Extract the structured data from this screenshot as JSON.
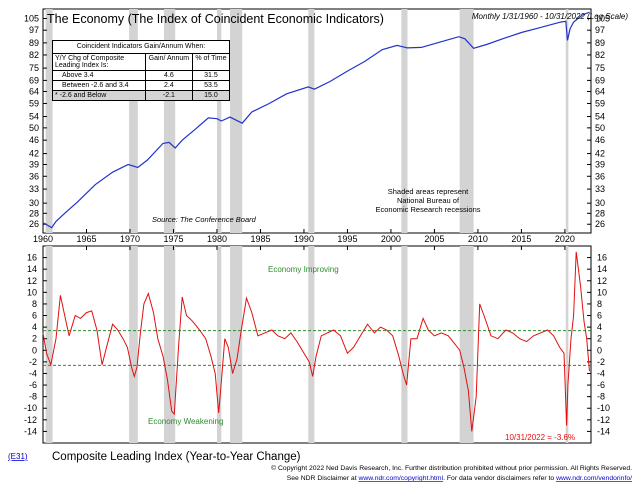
{
  "top_chart": {
    "title": "The Economy (The Index of Coincident Economic Indicators)",
    "subtitle": "Monthly 1/31/1960 - 10/31/2022 (Log Scale)",
    "source": "Source: The Conference Board",
    "shaded_note": [
      "Shaded areas represent",
      "National Bureau of",
      "Economic Research recessions"
    ],
    "y_ticks": [
      "105",
      "97",
      "89",
      "82",
      "75",
      "69",
      "64",
      "59",
      "54",
      "50",
      "46",
      "42",
      "39",
      "36",
      "33",
      "30",
      "28",
      "26"
    ]
  },
  "x_axis": {
    "ticks": [
      "1960",
      "1965",
      "1970",
      "1975",
      "1980",
      "1985",
      "1990",
      "1995",
      "2000",
      "2005",
      "2010",
      "2015",
      "2020"
    ]
  },
  "table": {
    "heading": "Coincident Indicators Gain/Annum When:",
    "col_headers": [
      "Y/Y Chg of Composite Leading Index Is:",
      "Gain/ Annum",
      "% of Time"
    ],
    "rows": [
      {
        "label": "Above 3.4",
        "gain": "4.6",
        "pct": "31.5"
      },
      {
        "label": "Between -2.6 and 3.4",
        "gain": "2.4",
        "pct": "53.5"
      },
      {
        "label": "* -2.6 and Below",
        "gain": "-2.1",
        "pct": "15.0"
      }
    ]
  },
  "bottom_chart": {
    "title": "Composite Leading Index (Year-to-Year Change)",
    "improving_label": "Economy Improving",
    "weakening_label": "Economy Weakening",
    "last_value_label": "10/31/2022 = -3.6%",
    "y_ticks": [
      "16",
      "14",
      "12",
      "10",
      "8",
      "6",
      "4",
      "2",
      "0",
      "-2",
      "-4",
      "-6",
      "-8",
      "-10",
      "-12",
      "-14"
    ]
  },
  "footer": {
    "code": "(E31)",
    "line1": "© Copyright 2022 Ned Davis Research, Inc.  Further distribution prohibited without prior permission.  All Rights Reserved.",
    "line2_a": "See NDR Disclaimer at",
    "link1": "www.ndr.com/copyright.html",
    "line2_b": ". For data vendor disclaimers refer to",
    "link2": "www.ndr.com/vendorinfo/"
  },
  "colors": {
    "line": "#e01010",
    "coincident": "#2233cc",
    "recession": "#d3d3d3",
    "threshold": "#2e8b2e"
  },
  "chart_data": [
    {
      "type": "line",
      "name": "Index of Coincident Economic Indicators",
      "scale": "log",
      "ylim": [
        24.5,
        112
      ],
      "xlim": [
        1960,
        2023
      ],
      "recessions": [
        [
          1960.3,
          1961.1
        ],
        [
          1969.9,
          1970.9
        ],
        [
          1973.9,
          1975.2
        ],
        [
          1980.0,
          1980.5
        ],
        [
          1981.5,
          1982.9
        ],
        [
          1990.5,
          1991.2
        ],
        [
          2001.2,
          2001.9
        ],
        [
          2007.9,
          2009.5
        ],
        [
          2020.1,
          2020.4
        ]
      ],
      "x": [
        1960.0,
        1961.0,
        1961.5,
        1962.5,
        1964.0,
        1966.0,
        1968.0,
        1969.8,
        1970.9,
        1972.0,
        1973.8,
        1974.5,
        1975.2,
        1976.0,
        1977.5,
        1979.0,
        1980.0,
        1980.5,
        1981.5,
        1982.9,
        1984.0,
        1986.0,
        1988.0,
        1990.5,
        1991.2,
        1993.0,
        1995.0,
        1997.0,
        1999.0,
        2000.7,
        2001.9,
        2003.5,
        2005.0,
        2007.8,
        2008.5,
        2009.5,
        2011.0,
        2013.0,
        2015.0,
        2017.0,
        2019.5,
        2020.1,
        2020.3,
        2020.6,
        2021.0,
        2022.0,
        2022.83
      ],
      "y": [
        26.3,
        25.4,
        26.5,
        28.0,
        30.3,
        34.0,
        37.0,
        39.0,
        38.2,
        40.2,
        45.0,
        45.3,
        43.6,
        46.0,
        49.5,
        53.5,
        53.2,
        52.4,
        53.8,
        51.6,
        55.7,
        59.0,
        63.0,
        66.0,
        65.0,
        68.5,
        73.5,
        78.5,
        85.0,
        87.5,
        86.0,
        86.3,
        88.5,
        92.8,
        91.5,
        85.8,
        88.0,
        91.8,
        95.5,
        98.5,
        102.5,
        103.0,
        90.5,
        98.0,
        102.5,
        107.5,
        109.6
      ]
    },
    {
      "type": "line",
      "name": "Composite Leading Index (Year-to-Year Change)",
      "unit": "%",
      "ylim": [
        -16,
        18
      ],
      "xlim": [
        1960,
        2023
      ],
      "thresholds": [
        3.4,
        -2.6
      ],
      "recessions": [
        [
          1960.3,
          1961.1
        ],
        [
          1969.9,
          1970.9
        ],
        [
          1973.9,
          1975.2
        ],
        [
          1980.0,
          1980.5
        ],
        [
          1981.5,
          1982.9
        ],
        [
          1990.5,
          1991.2
        ],
        [
          2001.2,
          2001.9
        ],
        [
          2007.9,
          2009.5
        ],
        [
          2020.1,
          2020.4
        ]
      ],
      "x": [
        1960.0,
        1960.4,
        1960.9,
        1961.5,
        1962.0,
        1962.5,
        1963.0,
        1963.7,
        1964.3,
        1965.0,
        1965.6,
        1966.2,
        1966.8,
        1967.3,
        1968.0,
        1968.6,
        1969.2,
        1969.7,
        1970.2,
        1970.5,
        1970.8,
        1971.2,
        1971.6,
        1972.1,
        1972.7,
        1973.2,
        1973.8,
        1974.3,
        1974.8,
        1975.1,
        1975.6,
        1976.0,
        1976.5,
        1977.2,
        1978.0,
        1978.7,
        1979.3,
        1979.8,
        1980.2,
        1980.5,
        1980.9,
        1981.3,
        1981.8,
        1982.3,
        1982.8,
        1983.4,
        1984.0,
        1984.7,
        1985.5,
        1986.3,
        1987.0,
        1987.8,
        1988.5,
        1989.2,
        1990.0,
        1990.6,
        1991.0,
        1991.4,
        1992.0,
        1992.7,
        1993.4,
        1994.2,
        1995.0,
        1995.7,
        1996.5,
        1997.3,
        1998.1,
        1998.8,
        1999.5,
        2000.2,
        2000.9,
        2001.4,
        2001.8,
        2002.3,
        2003.0,
        2003.7,
        2004.3,
        2005.0,
        2005.8,
        2006.6,
        2007.4,
        2007.9,
        2008.4,
        2008.9,
        2009.3,
        2009.8,
        2010.2,
        2010.7,
        2011.5,
        2012.3,
        2013.2,
        2014.0,
        2014.8,
        2015.6,
        2016.4,
        2017.2,
        2018.0,
        2018.7,
        2019.4,
        2019.9,
        2020.2,
        2020.35,
        2020.7,
        2021.0,
        2021.3,
        2021.8,
        2022.2,
        2022.5,
        2022.83
      ],
      "y": [
        3.0,
        -0.5,
        -2.5,
        2.0,
        9.5,
        6.0,
        2.5,
        6.0,
        5.5,
        6.5,
        6.8,
        3.5,
        -2.5,
        0.5,
        4.5,
        3.5,
        2.0,
        0.5,
        -3.0,
        -4.5,
        -3.0,
        3.0,
        8.0,
        9.8,
        6.5,
        2.0,
        -1.0,
        -5.0,
        -10.5,
        -11.0,
        1.0,
        9.2,
        6.0,
        5.0,
        3.5,
        2.0,
        -1.0,
        -4.0,
        -10.8,
        -5.5,
        2.0,
        0.5,
        -4.0,
        -1.5,
        3.5,
        9.0,
        6.5,
        2.5,
        3.0,
        3.5,
        2.5,
        2.0,
        3.0,
        1.5,
        -0.5,
        -2.0,
        -4.5,
        -1.0,
        2.5,
        3.0,
        3.5,
        2.5,
        -0.5,
        0.5,
        2.5,
        4.5,
        3.0,
        4.0,
        3.5,
        2.5,
        -1.0,
        -4.0,
        -6.0,
        2.0,
        2.0,
        5.5,
        3.5,
        2.5,
        3.0,
        2.5,
        1.0,
        0.0,
        -3.0,
        -7.0,
        -14.0,
        -8.0,
        8.0,
        6.0,
        2.5,
        2.0,
        3.5,
        3.0,
        2.0,
        1.5,
        2.5,
        3.0,
        3.5,
        2.5,
        0.5,
        -0.5,
        -13.0,
        -6.0,
        2.0,
        6.0,
        17.0,
        11.0,
        5.0,
        2.0,
        -3.6
      ]
    }
  ]
}
